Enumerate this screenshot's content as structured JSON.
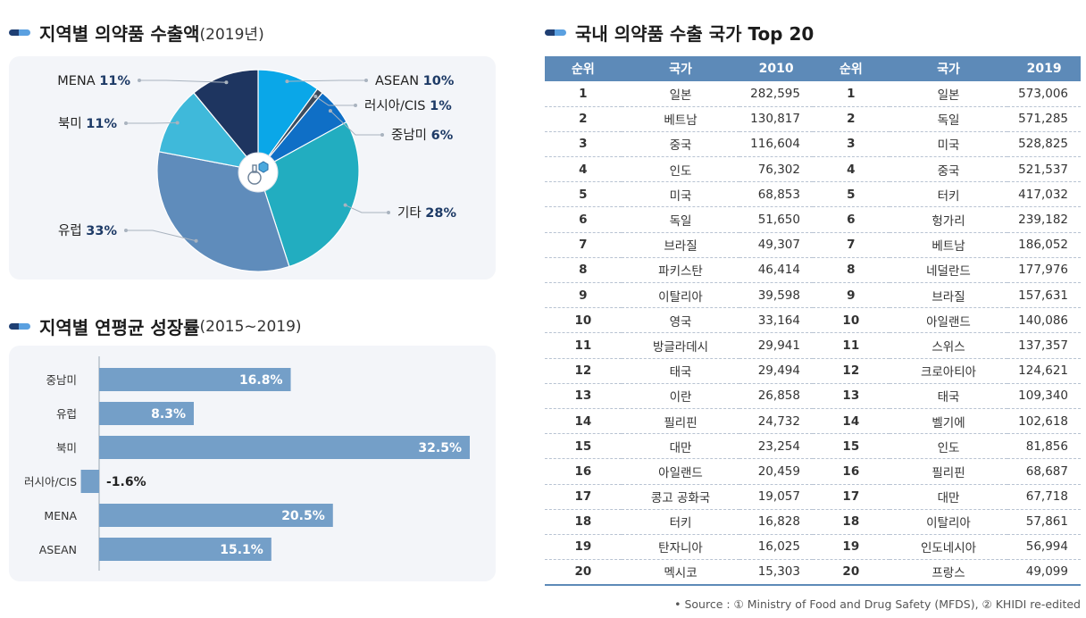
{
  "pie_title": "지역별 의약품 수출액",
  "pie_title_sub": "(2019년)",
  "bar_title": "지역별 연평균 성장률",
  "bar_title_sub": "(2015~2019)",
  "table_title": "국내 의약품 수출 국가 Top 20",
  "table_headers": [
    "순위",
    "국가",
    "2010",
    "순위",
    "국가",
    "2019"
  ],
  "table_rows": [
    [
      "1",
      "일본",
      "282,595",
      "1",
      "일본",
      "573,006"
    ],
    [
      "2",
      "베트남",
      "130,817",
      "2",
      "독일",
      "571,285"
    ],
    [
      "3",
      "중국",
      "116,604",
      "3",
      "미국",
      "528,825"
    ],
    [
      "4",
      "인도",
      "76,302",
      "4",
      "중국",
      "521,537"
    ],
    [
      "5",
      "미국",
      "68,853",
      "5",
      "터키",
      "417,032"
    ],
    [
      "6",
      "독일",
      "51,650",
      "6",
      "헝가리",
      "239,182"
    ],
    [
      "7",
      "브라질",
      "49,307",
      "7",
      "베트남",
      "186,052"
    ],
    [
      "8",
      "파키스탄",
      "46,414",
      "8",
      "네덜란드",
      "177,976"
    ],
    [
      "9",
      "이탈리아",
      "39,598",
      "9",
      "브라질",
      "157,631"
    ],
    [
      "10",
      "영국",
      "33,164",
      "10",
      "아일랜드",
      "140,086"
    ],
    [
      "11",
      "방글라데시",
      "29,941",
      "11",
      "스위스",
      "137,357"
    ],
    [
      "12",
      "태국",
      "29,494",
      "12",
      "크로아티아",
      "124,621"
    ],
    [
      "13",
      "이란",
      "26,858",
      "13",
      "태국",
      "109,340"
    ],
    [
      "14",
      "필리핀",
      "24,732",
      "14",
      "벨기에",
      "102,618"
    ],
    [
      "15",
      "대만",
      "23,254",
      "15",
      "인도",
      "81,856"
    ],
    [
      "16",
      "아일랜드",
      "20,459",
      "16",
      "필리핀",
      "68,687"
    ],
    [
      "17",
      "콩고 공화국",
      "19,057",
      "17",
      "대만",
      "67,718"
    ],
    [
      "18",
      "터키",
      "16,828",
      "18",
      "이탈리아",
      "57,861"
    ],
    [
      "19",
      "탄자니아",
      "16,025",
      "19",
      "인도네시아",
      "56,994"
    ],
    [
      "20",
      "멕시코",
      "15,303",
      "20",
      "프랑스",
      "49,099"
    ]
  ],
  "source": "• Source : ① Ministry of Food and Drug Safety (MFDS), ② KHIDI re-edited",
  "center_icon": "medicine-bottle-icon",
  "chart_data": [
    {
      "type": "pie",
      "title": "지역별 의약품 수출액(2019년)",
      "slices": [
        {
          "label": "ASEAN",
          "value": 10,
          "value_label": "10%",
          "color": "#0aa7e8"
        },
        {
          "label": "러시아/CIS",
          "value": 1,
          "value_label": "1%",
          "color": "#3d4b5c"
        },
        {
          "label": "중남미",
          "value": 6,
          "value_label": "6%",
          "color": "#0f6fc6"
        },
        {
          "label": "기타",
          "value": 28,
          "value_label": "28%",
          "color": "#22adc0"
        },
        {
          "label": "유럽",
          "value": 33,
          "value_label": "33%",
          "color": "#5f8cbb"
        },
        {
          "label": "북미",
          "value": 11,
          "value_label": "11%",
          "color": "#3fb9da"
        },
        {
          "label": "MENA",
          "value": 11,
          "value_label": "11%",
          "color": "#1e3560"
        }
      ]
    },
    {
      "type": "bar",
      "orientation": "horizontal",
      "title": "지역별 연평균 성장률(2015~2019)",
      "categories": [
        "중남미",
        "유럽",
        "북미",
        "러시아/CIS",
        "MENA",
        "ASEAN"
      ],
      "values": [
        16.8,
        8.3,
        32.5,
        -1.6,
        20.5,
        15.1
      ],
      "value_labels": [
        "16.8%",
        "8.3%",
        "32.5%",
        "-1.6%",
        "20.5%",
        "15.1%"
      ],
      "color": "#749fc8",
      "xlim": [
        -1.6,
        32.5
      ]
    }
  ]
}
